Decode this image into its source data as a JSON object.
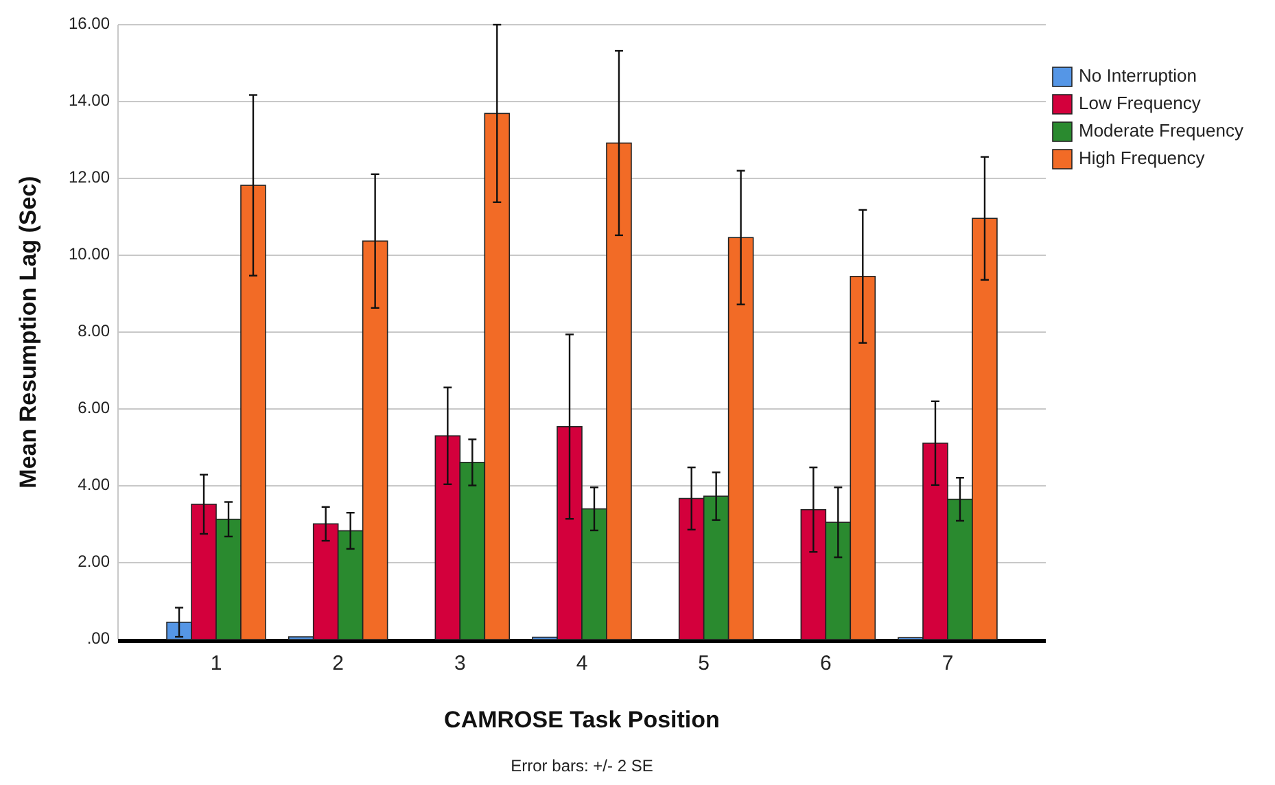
{
  "chart_data": {
    "type": "bar",
    "xlabel": "CAMROSE Task Position",
    "ylabel": "Mean Resumption Lag (Sec)",
    "categories": [
      "1",
      "2",
      "3",
      "4",
      "5",
      "6",
      "7"
    ],
    "series": [
      {
        "name": "No Interruption",
        "color": "#5596e6",
        "values": [
          0.45,
          0.07,
          0,
          0.06,
          0,
          0,
          0.05
        ],
        "errors": [
          0.38,
          null,
          null,
          null,
          null,
          null,
          null
        ]
      },
      {
        "name": "Low Frequency",
        "color": "#d3003c",
        "values": [
          3.52,
          3.01,
          5.3,
          5.54,
          3.67,
          3.38,
          5.11
        ],
        "errors": [
          0.77,
          0.44,
          1.26,
          2.4,
          0.81,
          1.1,
          1.09
        ]
      },
      {
        "name": "Moderate Frequency",
        "color": "#2a8a2f",
        "values": [
          3.13,
          2.83,
          4.61,
          3.4,
          3.73,
          3.05,
          3.65
        ],
        "errors": [
          0.45,
          0.47,
          0.6,
          0.56,
          0.62,
          0.91,
          0.56
        ]
      },
      {
        "name": "High Frequency",
        "color": "#f26b26",
        "values": [
          11.82,
          10.37,
          13.69,
          12.92,
          10.46,
          9.45,
          10.96
        ],
        "errors": [
          2.35,
          1.74,
          2.31,
          2.4,
          1.74,
          1.73,
          1.6
        ]
      }
    ],
    "ylim": [
      0,
      16
    ],
    "yticks": [
      {
        "value": 0,
        "label": ".00"
      },
      {
        "value": 2,
        "label": "2.00"
      },
      {
        "value": 4,
        "label": "4.00"
      },
      {
        "value": 6,
        "label": "6.00"
      },
      {
        "value": 8,
        "label": "8.00"
      },
      {
        "value": 10,
        "label": "10.00"
      },
      {
        "value": 12,
        "label": "12.00"
      },
      {
        "value": 14,
        "label": "14.00"
      },
      {
        "value": 16,
        "label": "16.00"
      }
    ],
    "grid": "y",
    "legend": "top right",
    "annotations": [
      "Error bars: +/- 2 SE"
    ]
  }
}
